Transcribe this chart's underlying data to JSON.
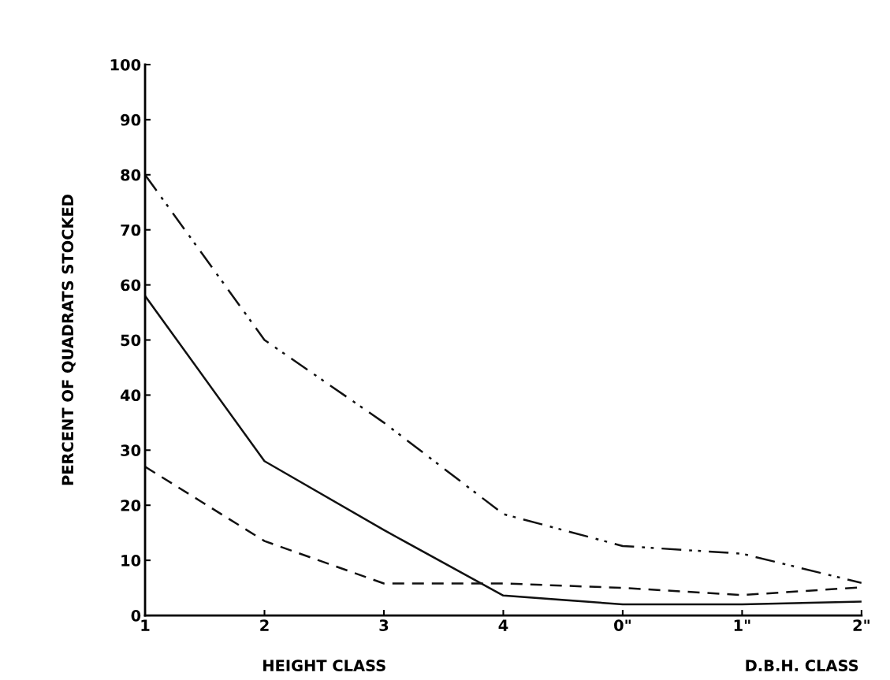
{
  "chart_data": {
    "type": "line",
    "ylabel": "PERCENT OF QUADRATS STOCKED",
    "xlabel": "HEIGHT CLASS",
    "annotations": [
      "D.B.H. CLASS"
    ],
    "categories": [
      "1",
      "2",
      "3",
      "4",
      "0\"",
      "1\"",
      "2\""
    ],
    "ylim": [
      0,
      100
    ],
    "yticks": [
      0,
      10,
      20,
      30,
      40,
      50,
      60,
      70,
      80,
      90,
      100
    ],
    "grid": false,
    "legend": false,
    "series": [
      {
        "color": "#111111",
        "line_style": "dashdotdot",
        "values": [
          80,
          50,
          35,
          18.4,
          12.6,
          11.2,
          5.9
        ]
      },
      {
        "color": "#111111",
        "line_style": "solid",
        "values": [
          58,
          28,
          15.5,
          3.6,
          2.0,
          2.0,
          2.5
        ]
      },
      {
        "color": "#111111",
        "line_style": "dashed",
        "values": [
          27,
          13.5,
          5.8,
          5.8,
          5.0,
          3.7,
          5.1
        ]
      }
    ]
  }
}
